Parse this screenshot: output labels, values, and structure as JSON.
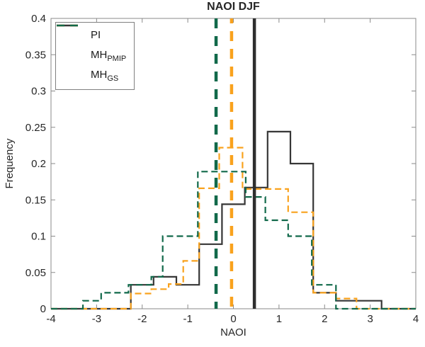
{
  "title": "NAOI DJF",
  "legend": {
    "items": [
      {
        "label": "PI",
        "sub": "",
        "style": "solid"
      },
      {
        "label": "MH",
        "sub": "PMIP",
        "style": "dashed"
      },
      {
        "label": "MH",
        "sub": "GS",
        "style": "dashed"
      }
    ]
  },
  "chart_data": {
    "type": "step-histogram",
    "title": "NAOI DJF",
    "xlabel": "NAOI",
    "ylabel": "Frequency",
    "xlim": [
      -4,
      4
    ],
    "ylim": [
      0,
      0.4
    ],
    "grid": false,
    "legend_position": "top-left",
    "x_tick_labels": [
      "-4",
      "-3",
      "-2",
      "-1",
      "0",
      "1",
      "2",
      "3",
      "4"
    ],
    "x_ticks": [
      -4,
      -3,
      -2,
      -1,
      0,
      1,
      2,
      3,
      4
    ],
    "y_tick_labels": [
      "0",
      "0.05",
      "0.1",
      "0.15",
      "0.2",
      "0.25",
      "0.3",
      "0.35",
      "0.4"
    ],
    "y_ticks": [
      0,
      0.05,
      0.1,
      0.15,
      0.2,
      0.25,
      0.3,
      0.35,
      0.4
    ],
    "bin_width_PI": 0.5,
    "series": [
      {
        "name": "PI",
        "color": "#363636",
        "dash": "solid",
        "steps": [
          [
            -4,
            0
          ],
          [
            -2.25,
            0.033
          ],
          [
            -1.75,
            0.044
          ],
          [
            -1.25,
            0.033
          ],
          [
            -0.75,
            0.089
          ],
          [
            -0.25,
            0.144
          ],
          [
            0.25,
            0.167
          ],
          [
            0.75,
            0.244
          ],
          [
            1.25,
            0.2
          ],
          [
            1.75,
            0.022
          ],
          [
            2.25,
            0.011
          ],
          [
            3.25,
            0
          ]
        ]
      },
      {
        "name": "MH_PMIP",
        "color": "#F9A21D",
        "dash": "dashed",
        "steps": [
          [
            -4,
            0
          ],
          [
            -2.25,
            0.021
          ],
          [
            -1.8,
            0.027
          ],
          [
            -1.42,
            0.034
          ],
          [
            -1.1,
            0.066
          ],
          [
            -0.75,
            0.166
          ],
          [
            -0.31,
            0.222
          ],
          [
            0.2,
            0.165
          ],
          [
            1.2,
            0.133
          ],
          [
            1.75,
            0.022
          ],
          [
            2.25,
            0.014
          ],
          [
            2.7,
            0
          ]
        ]
      },
      {
        "name": "MH_GS",
        "color": "#11694A",
        "dash": "dashed",
        "steps": [
          [
            -4,
            0
          ],
          [
            -3.3,
            0.011
          ],
          [
            -2.9,
            0.022
          ],
          [
            -2.3,
            0.033
          ],
          [
            -1.8,
            0.044
          ],
          [
            -1.55,
            0.1
          ],
          [
            -0.78,
            0.189
          ],
          [
            0.27,
            0.154
          ],
          [
            0.7,
            0.122
          ],
          [
            1.2,
            0.1
          ],
          [
            1.72,
            0.033
          ],
          [
            2.25,
            0
          ]
        ]
      }
    ],
    "vlines": [
      {
        "name": "MH_GS_mean",
        "x": -0.38,
        "color": "#11694A",
        "style": "dashed"
      },
      {
        "name": "MH_PMIP_mean",
        "x": -0.04,
        "color": "#F9A21D",
        "style": "dashed"
      },
      {
        "name": "PI_mean",
        "x": 0.46,
        "color": "#2E2E2E",
        "style": "solid"
      }
    ]
  }
}
